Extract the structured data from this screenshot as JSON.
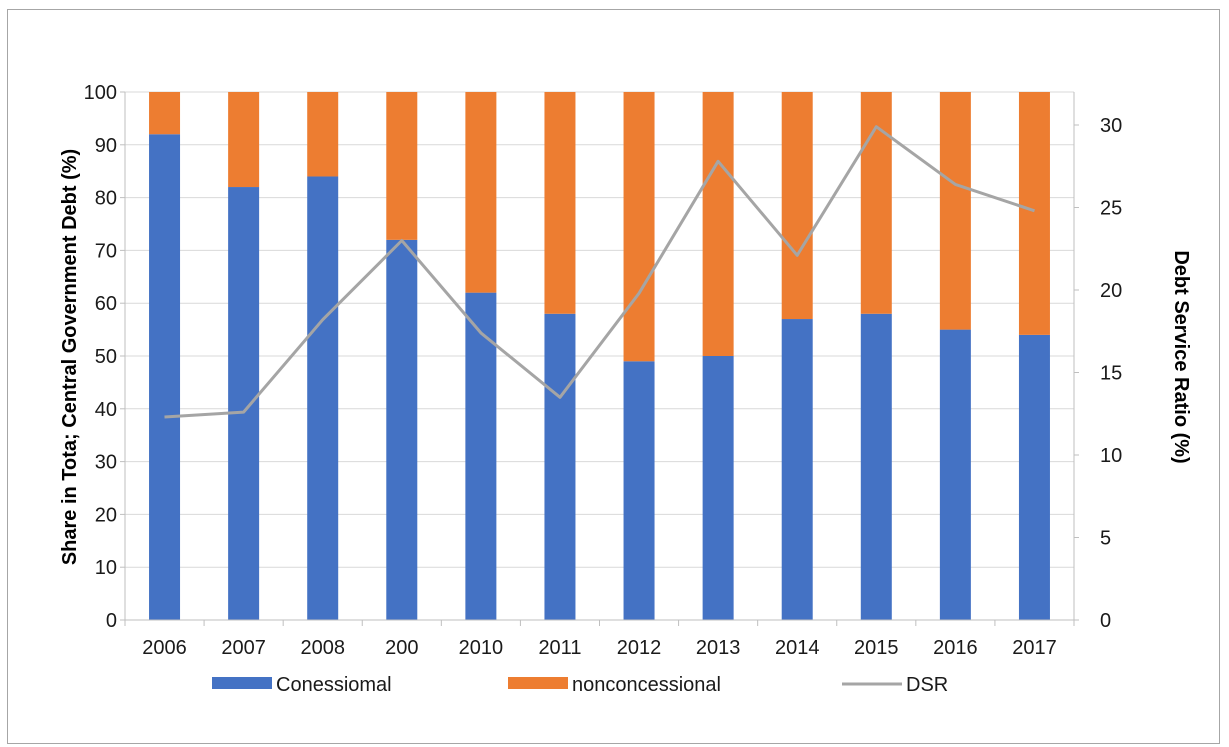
{
  "chart_data": {
    "type": "bar",
    "stacked": true,
    "title": "",
    "categories": [
      "2006",
      "2007",
      "2008",
      "200",
      "2010",
      "2011",
      "2012",
      "2013",
      "2014",
      "2015",
      "2016",
      "2017"
    ],
    "series": [
      {
        "name": "Conessiomal",
        "type": "bar",
        "axis": "left",
        "color": "#4472c4",
        "values": [
          92,
          82,
          84,
          72,
          62,
          58,
          49,
          50,
          57,
          58,
          55,
          54
        ]
      },
      {
        "name": "nonconcessional",
        "type": "bar",
        "axis": "left",
        "color": "#ed7d31",
        "values": [
          8,
          18,
          16,
          28,
          38,
          42,
          51,
          50,
          43,
          42,
          45,
          46
        ]
      },
      {
        "name": "DSR",
        "type": "line",
        "axis": "right",
        "color": "#a5a5a5",
        "values": [
          12.3,
          12.6,
          18.2,
          23.0,
          17.4,
          13.5,
          19.8,
          27.8,
          22.1,
          29.9,
          26.4,
          24.8
        ]
      }
    ],
    "left_axis": {
      "label": "Share in Tota; Central Government Debt (%)",
      "ylim": [
        0,
        100
      ],
      "ticks": [
        "0",
        "10",
        "20",
        "30",
        "40",
        "50",
        "60",
        "70",
        "80",
        "90",
        "100"
      ]
    },
    "right_axis": {
      "label": "Debt Service Ratio (%)",
      "ylim": [
        0,
        32
      ],
      "ticks": [
        "0",
        "5",
        "10",
        "15",
        "20",
        "25",
        "30"
      ]
    },
    "grid": true,
    "legend_position": "bottom"
  }
}
